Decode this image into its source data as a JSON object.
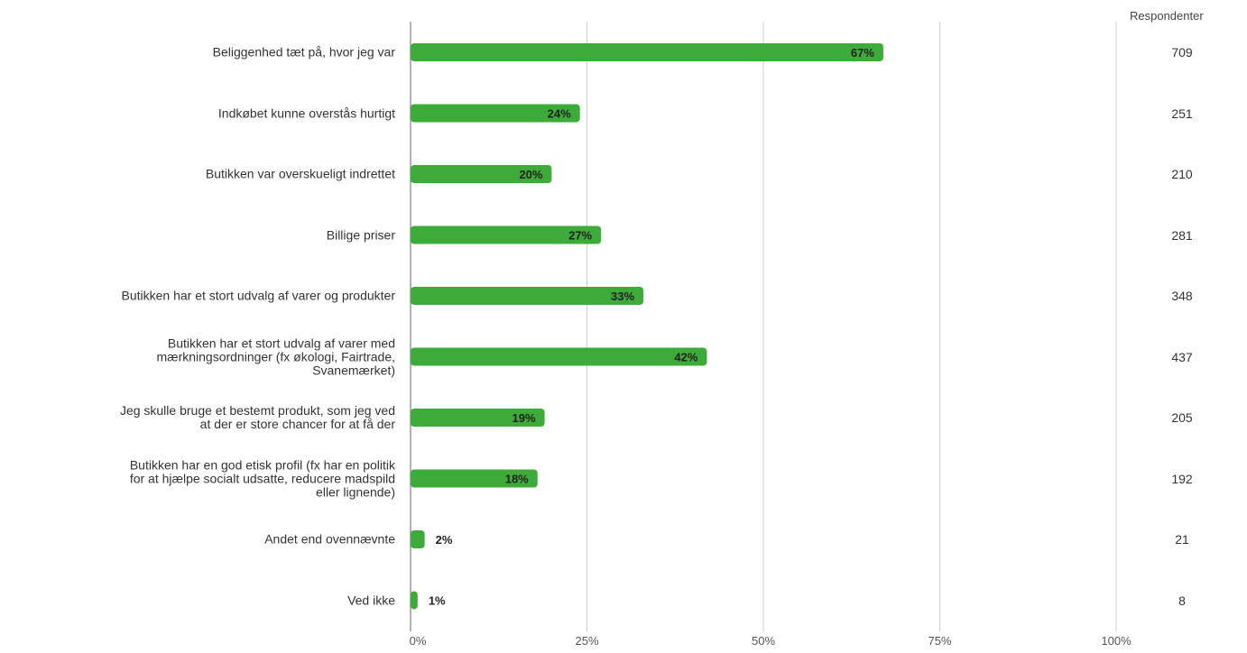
{
  "chart_data": {
    "type": "bar",
    "orientation": "horizontal",
    "categories": [
      "Beliggenhed tæt på, hvor jeg var",
      "Indkøbet kunne overstås hurtigt",
      "Butikken var overskueligt indrettet",
      "Billige priser",
      "Butikken har et stort udvalg af varer og produkter",
      "Butikken har et stort udvalg af varer med\nmærkningsordninger (fx økologi, Fairtrade,\nSvanemærket)",
      "Jeg skulle bruge et bestemt produkt, som jeg ved\nat der er store chancer for at få der",
      "Butikken har en god etisk profil (fx har en politik\nfor at hjælpe socialt udsatte, reducere madspild\neller lignende)",
      "Andet end ovennævnte",
      "Ved ikke"
    ],
    "values": [
      67,
      24,
      20,
      27,
      33,
      42,
      19,
      18,
      2,
      1
    ],
    "data_labels": [
      "67%",
      "24%",
      "20%",
      "27%",
      "33%",
      "42%",
      "19%",
      "18%",
      "2%",
      "1%"
    ],
    "respondents_header": "Respondenter",
    "respondents": [
      "709",
      "251",
      "210",
      "281",
      "348",
      "437",
      "205",
      "192",
      "21",
      "8"
    ],
    "x_ticks": [
      "0%",
      "25%",
      "50%",
      "75%",
      "100%"
    ],
    "xlim": [
      0,
      100
    ],
    "grid": true,
    "bar_color": "#3dab3a"
  }
}
